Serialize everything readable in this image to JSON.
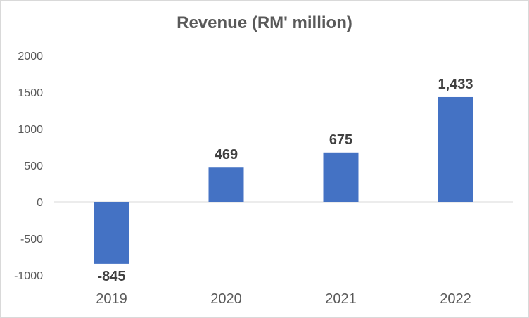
{
  "chart_data": {
    "type": "bar",
    "title": "Revenue (RM' million)",
    "xlabel": "",
    "ylabel": "",
    "categories": [
      "2019",
      "2020",
      "2021",
      "2022"
    ],
    "values": [
      -845,
      469,
      675,
      1433
    ],
    "data_labels": [
      "-845",
      "469",
      "675",
      "1,433"
    ],
    "ylim": [
      -1000,
      2000
    ],
    "yticks": [
      2000,
      1500,
      1000,
      500,
      0,
      -500,
      -1000
    ],
    "ytick_labels": [
      "2000",
      "1500",
      "1000",
      "500",
      "0",
      "-500",
      "-1000"
    ],
    "grid": false,
    "legend": "none",
    "bar_color": "#4472c4"
  }
}
